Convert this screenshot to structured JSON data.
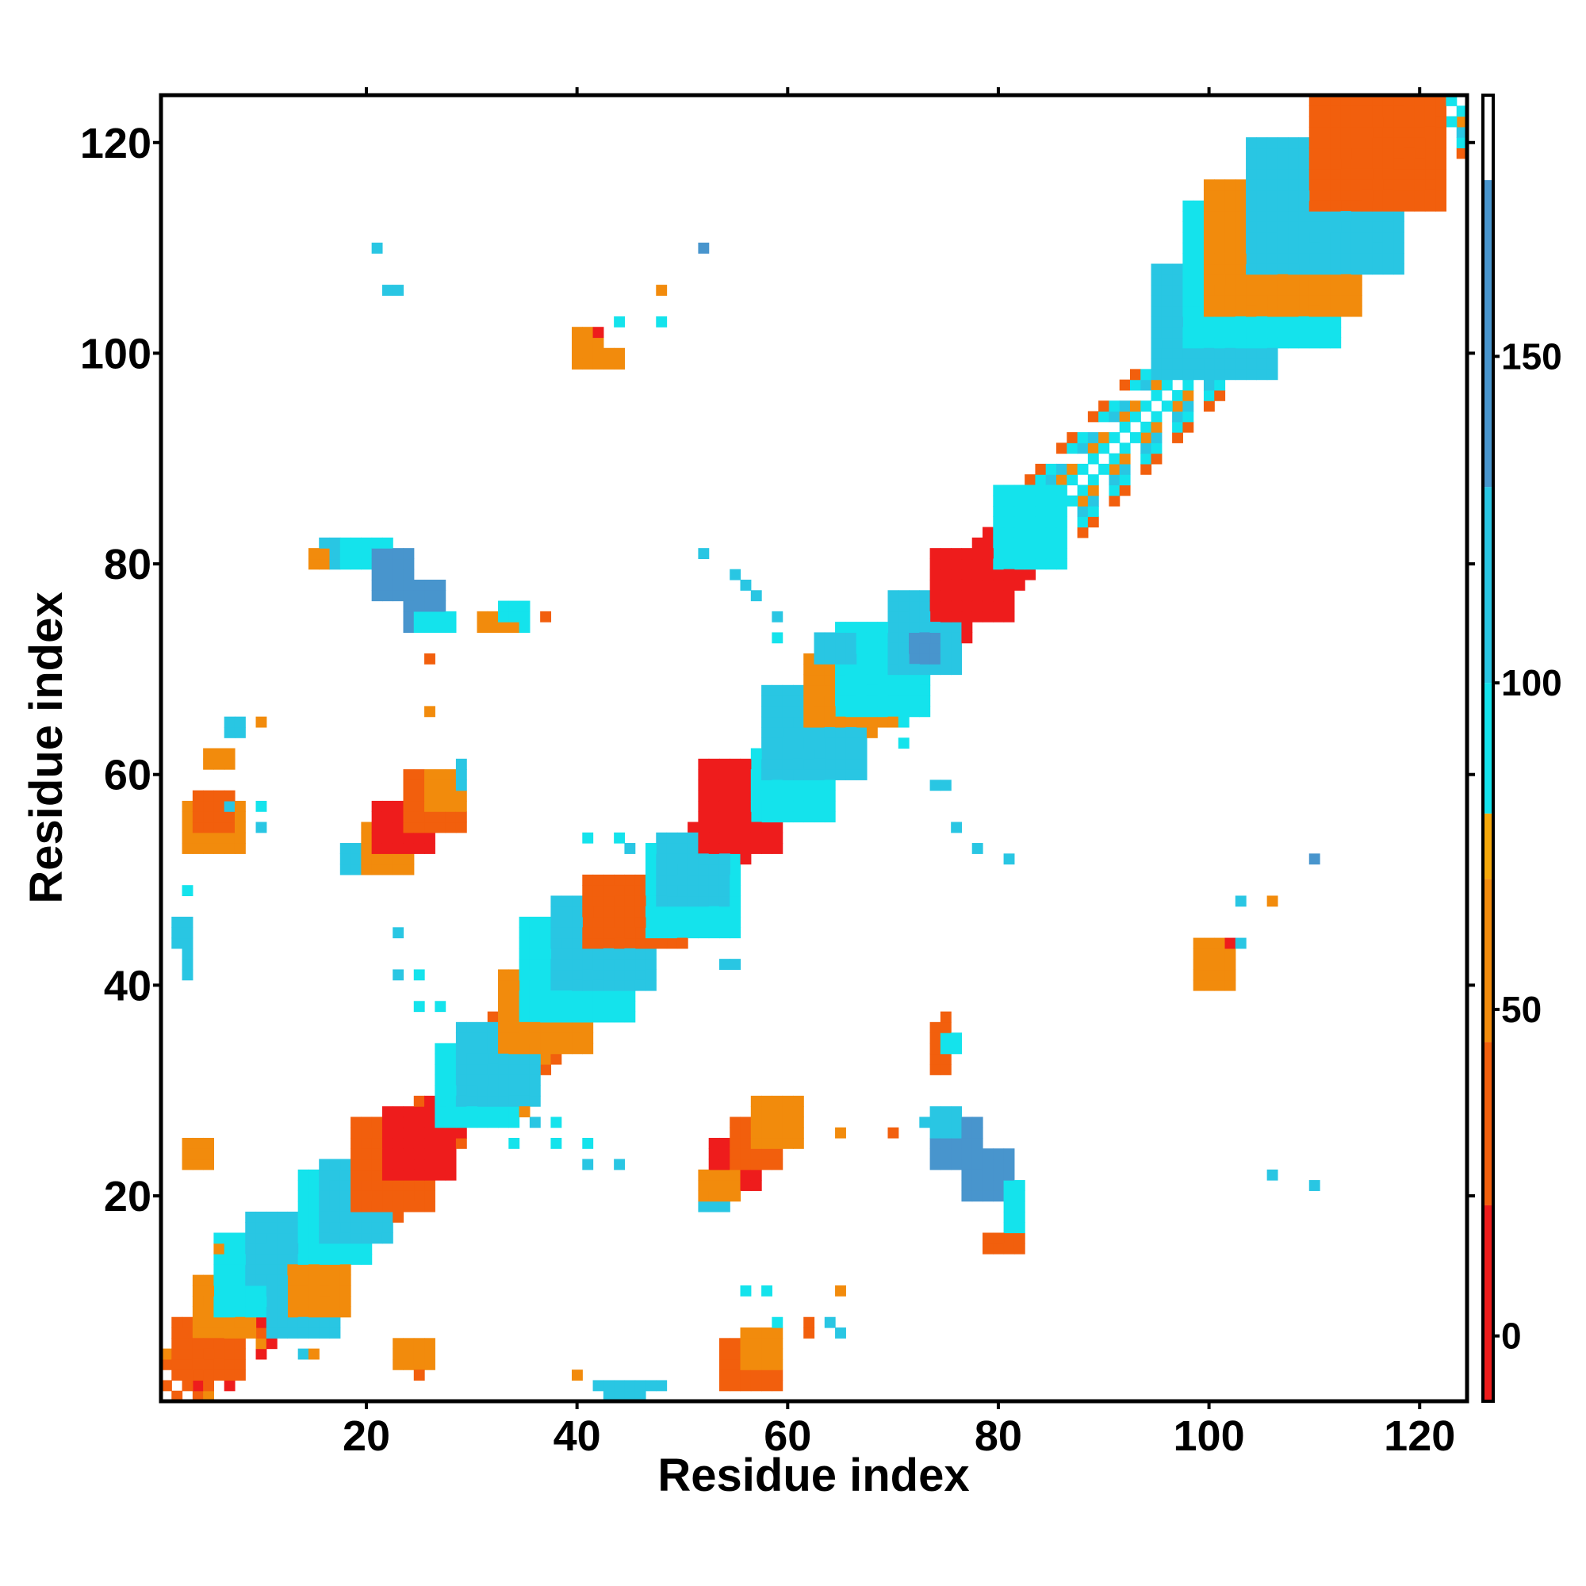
{
  "chart_data": {
    "type": "heatmap",
    "title": "",
    "xlabel": "Residue index",
    "ylabel": "Residue index",
    "xlim": [
      1,
      124
    ],
    "ylim": [
      1,
      124
    ],
    "x_ticks": [
      20,
      40,
      60,
      80,
      100,
      120
    ],
    "y_ticks": [
      20,
      40,
      60,
      80,
      100,
      120
    ],
    "grid": false,
    "colorbar": {
      "position": "right",
      "range": [
        -10,
        190
      ],
      "ticks": [
        0,
        50,
        100,
        150
      ],
      "bands": [
        {
          "from": -10,
          "to": 20,
          "color": "#ee1c1c"
        },
        {
          "from": 20,
          "to": 45,
          "color": "#f25f0d"
        },
        {
          "from": 45,
          "to": 70,
          "color": "#f28b0c"
        },
        {
          "from": 70,
          "to": 80,
          "color": "#f5a80a"
        },
        {
          "from": 80,
          "to": 100,
          "color": "#14e3ec"
        },
        {
          "from": 100,
          "to": 130,
          "color": "#29c6e3"
        },
        {
          "from": 130,
          "to": 177,
          "color": "#4895cd"
        },
        {
          "from": 177,
          "to": 190,
          "color": "#ffffff"
        }
      ]
    },
    "palette": {
      "r": "#ee1c1c",
      "o": "#f25f0d",
      "a": "#f28b0c",
      "c": "#14e3ec",
      "l": "#29c6e3",
      "b": "#4895cd"
    },
    "diagonal_segments": [
      {
        "from": 1,
        "to": 9,
        "pattern": "ooroar"
      },
      {
        "from": 9,
        "to": 23,
        "pattern": "ocalco"
      },
      {
        "from": 23,
        "to": 30,
        "pattern": "rroro"
      },
      {
        "from": 30,
        "to": 48,
        "pattern": "oclcao"
      },
      {
        "from": 48,
        "to": 60,
        "pattern": "rorcr"
      },
      {
        "from": 60,
        "to": 72,
        "pattern": "oclca"
      },
      {
        "from": 72,
        "to": 82,
        "pattern": "rrorr"
      },
      {
        "from": 82,
        "to": 124,
        "pattern": "ocalco"
      }
    ],
    "blocks": [
      {
        "x": [
          2,
          8
        ],
        "y": [
          3,
          8
        ],
        "c": "o"
      },
      {
        "x": [
          4,
          9
        ],
        "y": [
          7,
          12
        ],
        "c": "a"
      },
      {
        "x": [
          6,
          12
        ],
        "y": [
          9,
          16
        ],
        "c": "c"
      },
      {
        "x": [
          9,
          16
        ],
        "y": [
          12,
          18
        ],
        "c": "l"
      },
      {
        "x": [
          14,
          20
        ],
        "y": [
          14,
          22
        ],
        "c": "c"
      },
      {
        "x": [
          16,
          22
        ],
        "y": [
          16,
          23
        ],
        "c": "l"
      },
      {
        "x": [
          11,
          17
        ],
        "y": [
          7,
          12
        ],
        "c": "l"
      },
      {
        "x": [
          13,
          18
        ],
        "y": [
          9,
          13
        ],
        "c": "a"
      },
      {
        "x": [
          19,
          26
        ],
        "y": [
          19,
          27
        ],
        "c": "o"
      },
      {
        "x": [
          22,
          28
        ],
        "y": [
          22,
          28
        ],
        "c": "r"
      },
      {
        "x": [
          27,
          34
        ],
        "y": [
          27,
          34
        ],
        "c": "c"
      },
      {
        "x": [
          29,
          36
        ],
        "y": [
          29,
          36
        ],
        "c": "l"
      },
      {
        "x": [
          33,
          41
        ],
        "y": [
          34,
          41
        ],
        "c": "a"
      },
      {
        "x": [
          35,
          45
        ],
        "y": [
          37,
          46
        ],
        "c": "c"
      },
      {
        "x": [
          38,
          47
        ],
        "y": [
          40,
          48
        ],
        "c": "l"
      },
      {
        "x": [
          41,
          50
        ],
        "y": [
          44,
          50
        ],
        "c": "o"
      },
      {
        "x": [
          47,
          55
        ],
        "y": [
          45,
          53
        ],
        "c": "c"
      },
      {
        "x": [
          48,
          54
        ],
        "y": [
          48,
          54
        ],
        "c": "l"
      },
      {
        "x": [
          52,
          59
        ],
        "y": [
          53,
          61
        ],
        "c": "r"
      },
      {
        "x": [
          57,
          64
        ],
        "y": [
          56,
          62
        ],
        "c": "c"
      },
      {
        "x": [
          58,
          67
        ],
        "y": [
          60,
          68
        ],
        "c": "l"
      },
      {
        "x": [
          62,
          70
        ],
        "y": [
          65,
          71
        ],
        "c": "a"
      },
      {
        "x": [
          65,
          73
        ],
        "y": [
          66,
          74
        ],
        "c": "c"
      },
      {
        "x": [
          70,
          76
        ],
        "y": [
          70,
          77
        ],
        "c": "l"
      },
      {
        "x": [
          74,
          81
        ],
        "y": [
          75,
          81
        ],
        "c": "r"
      },
      {
        "x": [
          80,
          86
        ],
        "y": [
          80,
          87
        ],
        "c": "c"
      },
      {
        "x": [
          95,
          106
        ],
        "y": [
          98,
          108
        ],
        "c": "l"
      },
      {
        "x": [
          98,
          112
        ],
        "y": [
          101,
          114
        ],
        "c": "c"
      },
      {
        "x": [
          100,
          114
        ],
        "y": [
          104,
          116
        ],
        "c": "a"
      },
      {
        "x": [
          104,
          118
        ],
        "y": [
          108,
          120
        ],
        "c": "l"
      },
      {
        "x": [
          110,
          122
        ],
        "y": [
          114,
          124
        ],
        "c": "o"
      },
      {
        "x": [
          3,
          8
        ],
        "y": [
          53,
          57
        ],
        "c": "a"
      },
      {
        "x": [
          4,
          7
        ],
        "y": [
          55,
          58
        ],
        "c": "o"
      },
      {
        "x": [
          2,
          3
        ],
        "y": [
          44,
          46
        ],
        "c": "l"
      },
      {
        "x": [
          3,
          3
        ],
        "y": [
          41,
          43
        ],
        "c": "l"
      },
      {
        "x": [
          5,
          7
        ],
        "y": [
          61,
          62
        ],
        "c": "a"
      },
      {
        "x": [
          7,
          8
        ],
        "y": [
          64,
          65
        ],
        "c": "l"
      },
      {
        "x": [
          3,
          5
        ],
        "y": [
          23,
          25
        ],
        "c": "a"
      },
      {
        "x": [
          23,
          26
        ],
        "y": [
          4,
          6
        ],
        "c": "a"
      },
      {
        "x": [
          18,
          21
        ],
        "y": [
          51,
          53
        ],
        "c": "l"
      },
      {
        "x": [
          20,
          24
        ],
        "y": [
          51,
          55
        ],
        "c": "a"
      },
      {
        "x": [
          21,
          26
        ],
        "y": [
          53,
          57
        ],
        "c": "r"
      },
      {
        "x": [
          24,
          29
        ],
        "y": [
          55,
          60
        ],
        "c": "o"
      },
      {
        "x": [
          26,
          29
        ],
        "y": [
          57,
          60
        ],
        "c": "a"
      },
      {
        "x": [
          29,
          29
        ],
        "y": [
          59,
          61
        ],
        "c": "l"
      },
      {
        "x": [
          16,
          18
        ],
        "y": [
          80,
          82
        ],
        "c": "l"
      },
      {
        "x": [
          18,
          22
        ],
        "y": [
          80,
          82
        ],
        "c": "c"
      },
      {
        "x": [
          21,
          24
        ],
        "y": [
          77,
          81
        ],
        "c": "b"
      },
      {
        "x": [
          24,
          27
        ],
        "y": [
          74,
          78
        ],
        "c": "b"
      },
      {
        "x": [
          25,
          28
        ],
        "y": [
          74,
          75
        ],
        "c": "c"
      },
      {
        "x": [
          15,
          16
        ],
        "y": [
          80,
          81
        ],
        "c": "a"
      },
      {
        "x": [
          31,
          34
        ],
        "y": [
          74,
          75
        ],
        "c": "a"
      },
      {
        "x": [
          33,
          35
        ],
        "y": [
          75,
          76
        ],
        "c": "c"
      },
      {
        "x": [
          53,
          57
        ],
        "y": [
          21,
          25
        ],
        "c": "r"
      },
      {
        "x": [
          55,
          59
        ],
        "y": [
          23,
          27
        ],
        "c": "o"
      },
      {
        "x": [
          57,
          61
        ],
        "y": [
          25,
          29
        ],
        "c": "a"
      },
      {
        "x": [
          52,
          54
        ],
        "y": [
          19,
          21
        ],
        "c": "l"
      },
      {
        "x": [
          52,
          55
        ],
        "y": [
          20,
          22
        ],
        "c": "a"
      },
      {
        "x": [
          74,
          78
        ],
        "y": [
          23,
          27
        ],
        "c": "b"
      },
      {
        "x": [
          77,
          81
        ],
        "y": [
          20,
          24
        ],
        "c": "b"
      },
      {
        "x": [
          74,
          76
        ],
        "y": [
          26,
          28
        ],
        "c": "l"
      },
      {
        "x": [
          81,
          82
        ],
        "y": [
          16,
          21
        ],
        "c": "c"
      },
      {
        "x": [
          79,
          82
        ],
        "y": [
          15,
          16
        ],
        "c": "o"
      },
      {
        "x": [
          54,
          59
        ],
        "y": [
          2,
          6
        ],
        "c": "o"
      },
      {
        "x": [
          56,
          59
        ],
        "y": [
          4,
          7
        ],
        "c": "a"
      },
      {
        "x": [
          40,
          42
        ],
        "y": [
          99,
          102
        ],
        "c": "a"
      },
      {
        "x": [
          43,
          44
        ],
        "y": [
          99,
          100
        ],
        "c": "a"
      },
      {
        "x": [
          99,
          102
        ],
        "y": [
          40,
          44
        ],
        "c": "a"
      },
      {
        "x": [
          43,
          46
        ],
        "y": [
          1,
          2
        ],
        "c": "l"
      },
      {
        "x": [
          63,
          66
        ],
        "y": [
          71,
          73
        ],
        "c": "l"
      },
      {
        "x": [
          72,
          74
        ],
        "y": [
          71,
          73
        ],
        "c": "b"
      },
      {
        "x": [
          74,
          75
        ],
        "y": [
          32,
          36
        ],
        "c": "o"
      },
      {
        "x": [
          75,
          76
        ],
        "y": [
          34,
          35
        ],
        "c": "c"
      }
    ],
    "points": [
      {
        "x": 21,
        "y": 110,
        "c": "l"
      },
      {
        "x": 22,
        "y": 106,
        "c": "l"
      },
      {
        "x": 23,
        "y": 106,
        "c": "l"
      },
      {
        "x": 52,
        "y": 110,
        "c": "b"
      },
      {
        "x": 48,
        "y": 106,
        "c": "a"
      },
      {
        "x": 48,
        "y": 103,
        "c": "c"
      },
      {
        "x": 44,
        "y": 103,
        "c": "c"
      },
      {
        "x": 42,
        "y": 102,
        "c": "r"
      },
      {
        "x": 52,
        "y": 81,
        "c": "l"
      },
      {
        "x": 55,
        "y": 79,
        "c": "l"
      },
      {
        "x": 56,
        "y": 78,
        "c": "l"
      },
      {
        "x": 57,
        "y": 77,
        "c": "l"
      },
      {
        "x": 59,
        "y": 75,
        "c": "l"
      },
      {
        "x": 59,
        "y": 73,
        "c": "c"
      },
      {
        "x": 26,
        "y": 71,
        "c": "o"
      },
      {
        "x": 26,
        "y": 66,
        "c": "a"
      },
      {
        "x": 10,
        "y": 65,
        "c": "a"
      },
      {
        "x": 10,
        "y": 57,
        "c": "c"
      },
      {
        "x": 10,
        "y": 55,
        "c": "l"
      },
      {
        "x": 7,
        "y": 57,
        "c": "l"
      },
      {
        "x": 37,
        "y": 75,
        "c": "o"
      },
      {
        "x": 35,
        "y": 74,
        "c": "c"
      },
      {
        "x": 3,
        "y": 49,
        "c": "c"
      },
      {
        "x": 23,
        "y": 45,
        "c": "l"
      },
      {
        "x": 23,
        "y": 41,
        "c": "l"
      },
      {
        "x": 25,
        "y": 41,
        "c": "c"
      },
      {
        "x": 25,
        "y": 38,
        "c": "c"
      },
      {
        "x": 27,
        "y": 38,
        "c": "c"
      },
      {
        "x": 41,
        "y": 54,
        "c": "c"
      },
      {
        "x": 44,
        "y": 54,
        "c": "c"
      },
      {
        "x": 45,
        "y": 53,
        "c": "l"
      },
      {
        "x": 55,
        "y": 45,
        "c": "c"
      },
      {
        "x": 54,
        "y": 42,
        "c": "l"
      },
      {
        "x": 55,
        "y": 42,
        "c": "l"
      },
      {
        "x": 71,
        "y": 65,
        "c": "c"
      },
      {
        "x": 71,
        "y": 63,
        "c": "c"
      },
      {
        "x": 74,
        "y": 59,
        "c": "l"
      },
      {
        "x": 75,
        "y": 59,
        "c": "l"
      },
      {
        "x": 76,
        "y": 55,
        "c": "l"
      },
      {
        "x": 78,
        "y": 53,
        "c": "l"
      },
      {
        "x": 81,
        "y": 52,
        "c": "l"
      },
      {
        "x": 110,
        "y": 52,
        "c": "b"
      },
      {
        "x": 103,
        "y": 48,
        "c": "l"
      },
      {
        "x": 106,
        "y": 48,
        "c": "a"
      },
      {
        "x": 102,
        "y": 44,
        "c": "r"
      },
      {
        "x": 103,
        "y": 44,
        "c": "l"
      },
      {
        "x": 106,
        "y": 22,
        "c": "l"
      },
      {
        "x": 110,
        "y": 21,
        "c": "l"
      },
      {
        "x": 36,
        "y": 27,
        "c": "l"
      },
      {
        "x": 38,
        "y": 27,
        "c": "c"
      },
      {
        "x": 38,
        "y": 25,
        "c": "c"
      },
      {
        "x": 41,
        "y": 25,
        "c": "c"
      },
      {
        "x": 41,
        "y": 23,
        "c": "l"
      },
      {
        "x": 44,
        "y": 23,
        "c": "l"
      },
      {
        "x": 34,
        "y": 25,
        "c": "c"
      },
      {
        "x": 35,
        "y": 28,
        "c": "a"
      },
      {
        "x": 65,
        "y": 26,
        "c": "a"
      },
      {
        "x": 70,
        "y": 26,
        "c": "o"
      },
      {
        "x": 73,
        "y": 27,
        "c": "l"
      },
      {
        "x": 75,
        "y": 37,
        "c": "o"
      },
      {
        "x": 65,
        "y": 11,
        "c": "a"
      },
      {
        "x": 62,
        "y": 8,
        "c": "o"
      },
      {
        "x": 62,
        "y": 7,
        "c": "o"
      },
      {
        "x": 64,
        "y": 8,
        "c": "l"
      },
      {
        "x": 65,
        "y": 7,
        "c": "l"
      },
      {
        "x": 58,
        "y": 11,
        "c": "c"
      },
      {
        "x": 56,
        "y": 11,
        "c": "c"
      },
      {
        "x": 59,
        "y": 8,
        "c": "c"
      },
      {
        "x": 6,
        "y": 15,
        "c": "a"
      },
      {
        "x": 14,
        "y": 5,
        "c": "l"
      },
      {
        "x": 15,
        "y": 5,
        "c": "a"
      },
      {
        "x": 25,
        "y": 3,
        "c": "o"
      },
      {
        "x": 40,
        "y": 3,
        "c": "a"
      },
      {
        "x": 47,
        "y": 2,
        "c": "l"
      },
      {
        "x": 42,
        "y": 2,
        "c": "l"
      },
      {
        "x": 48,
        "y": 2,
        "c": "l"
      }
    ]
  }
}
